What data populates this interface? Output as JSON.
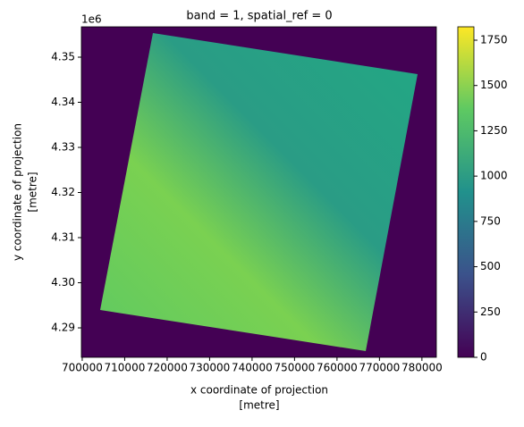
{
  "chart_data": {
    "type": "raster",
    "title": "band = 1, spatial_ref = 0",
    "x_label": [
      "x coordinate of projection",
      "[metre]"
    ],
    "y_label": [
      "y coordinate of projection",
      "[metre]"
    ],
    "y_offset_label": "1e6",
    "xlim": [
      699800,
      783400
    ],
    "xticks": [
      700000,
      710000,
      720000,
      730000,
      740000,
      750000,
      760000,
      770000,
      780000
    ],
    "ylim": [
      4283470,
      4356730
    ],
    "yticks": [
      {
        "value": 4290000,
        "label": "4.29"
      },
      {
        "value": 4300000,
        "label": "4.30"
      },
      {
        "value": 4310000,
        "label": "4.31"
      },
      {
        "value": 4320000,
        "label": "4.32"
      },
      {
        "value": 4330000,
        "label": "4.33"
      },
      {
        "value": 4340000,
        "label": "4.34"
      },
      {
        "value": 4350000,
        "label": "4.35"
      }
    ],
    "colorbar_lim": [
      0,
      1824
    ],
    "colorbar_ticks": [
      0,
      250,
      500,
      750,
      1000,
      1250,
      1500,
      1750
    ],
    "colormap": "viridis"
  }
}
